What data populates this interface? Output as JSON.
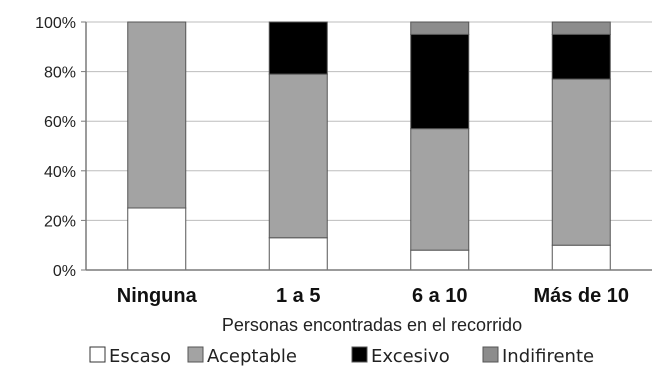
{
  "chart_data": {
    "type": "bar",
    "stacked": true,
    "categories": [
      "Ninguna",
      "1 a 5",
      "6 a 10",
      "Más de 10"
    ],
    "series": [
      {
        "name": "Escaso",
        "values": [
          25,
          13,
          8,
          10
        ],
        "color": "#ffffff"
      },
      {
        "name": "Aceptable",
        "values": [
          75,
          66,
          49,
          67
        ],
        "color": "#a3a3a3"
      },
      {
        "name": "Excesivo",
        "values": [
          0,
          21,
          38,
          18
        ],
        "color": "#000000"
      },
      {
        "name": "Indifirente",
        "values": [
          0,
          0,
          5,
          5
        ],
        "color": "#8c8c8c"
      }
    ],
    "xlabel": "Personas encontradas en el recorrido",
    "ylabel": "",
    "ylim": [
      0,
      100
    ],
    "yticks": [
      "0%",
      "20%",
      "40%",
      "60%",
      "80%",
      "100%"
    ],
    "grid": true,
    "legend_position": "bottom"
  }
}
